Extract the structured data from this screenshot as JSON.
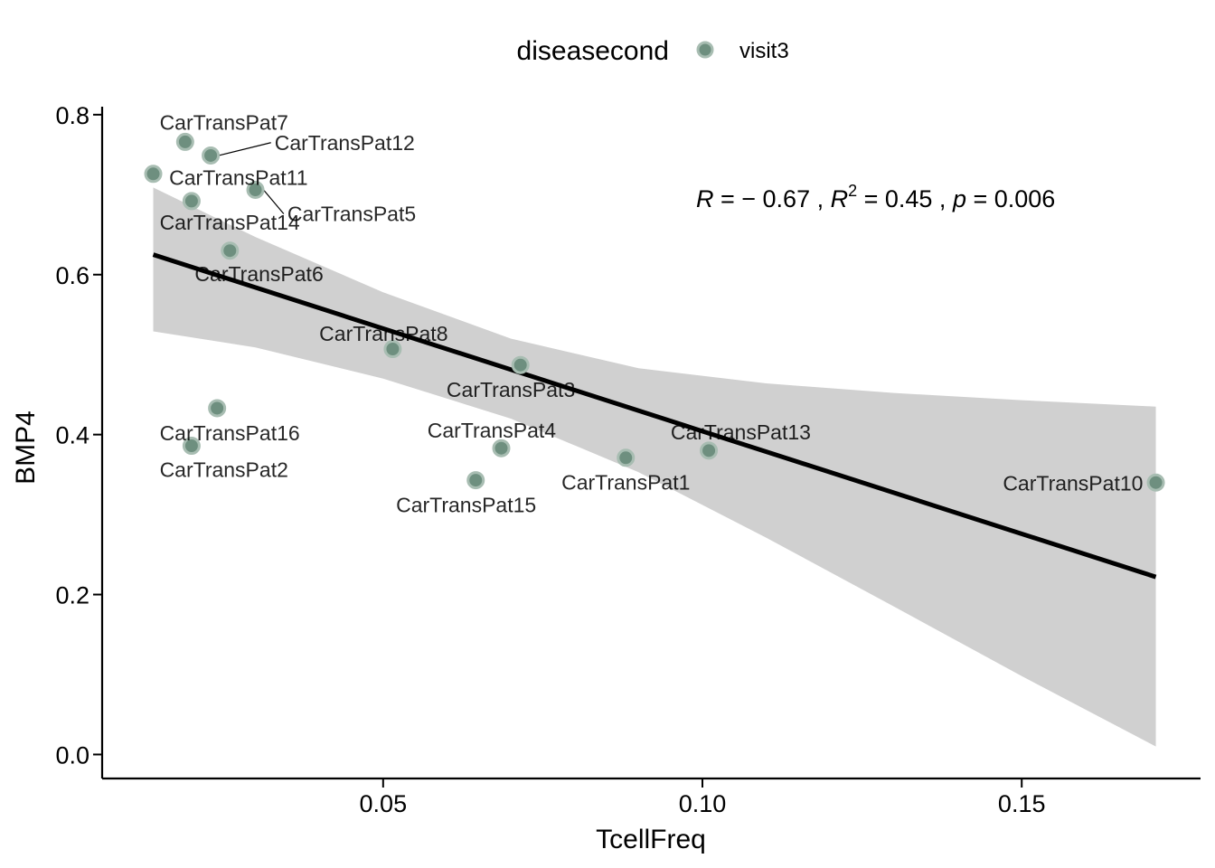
{
  "chart_data": {
    "type": "scatter",
    "xlabel": "TcellFreq",
    "ylabel": "BMP4",
    "xlim": [
      0.006,
      0.178
    ],
    "ylim": [
      -0.03,
      0.81
    ],
    "x_ticks": [
      0.05,
      0.1,
      0.15
    ],
    "x_tick_labels": [
      "0.05",
      "0.10",
      "0.15"
    ],
    "y_ticks": [
      0.0,
      0.2,
      0.4,
      0.6,
      0.8
    ],
    "y_tick_labels": [
      "0.0",
      "0.2",
      "0.4",
      "0.6",
      "0.8"
    ],
    "grid": false,
    "legend": {
      "placement": "top",
      "title": "diseasecond",
      "entries": [
        {
          "label": "visit3",
          "color": "#6e8f7f"
        }
      ]
    },
    "point_color": "#6e8f7f",
    "point_edge_color": "#a8bdb2",
    "band_color": "#d0d0d0",
    "line_color": "#000000",
    "series": [
      {
        "name": "visit3",
        "points": [
          {
            "label": "CarTransPat7",
            "x": 0.019,
            "y": 0.766,
            "lx": 0.015,
            "ly": 0.781,
            "anchor": "start",
            "leader": false
          },
          {
            "label": "CarTransPat12",
            "x": 0.023,
            "y": 0.749,
            "lx": 0.033,
            "ly": 0.756,
            "anchor": "start",
            "leader": true
          },
          {
            "label": "CarTransPat11",
            "x": 0.014,
            "y": 0.726,
            "lx": 0.0165,
            "ly": 0.712,
            "anchor": "start",
            "leader": false
          },
          {
            "label": "CarTransPat5",
            "x": 0.03,
            "y": 0.706,
            "lx": 0.035,
            "ly": 0.667,
            "anchor": "start",
            "leader": true
          },
          {
            "label": "CarTransPat14",
            "x": 0.02,
            "y": 0.692,
            "lx": 0.015,
            "ly": 0.656,
            "anchor": "start",
            "leader": false
          },
          {
            "label": "CarTransPat6",
            "x": 0.026,
            "y": 0.63,
            "lx": 0.0205,
            "ly": 0.592,
            "anchor": "start",
            "leader": false
          },
          {
            "label": "CarTransPat8",
            "x": 0.0515,
            "y": 0.507,
            "lx": 0.04,
            "ly": 0.517,
            "anchor": "start",
            "leader": false
          },
          {
            "label": "CarTransPat3",
            "x": 0.0715,
            "y": 0.487,
            "lx": 0.07,
            "ly": 0.447,
            "anchor": "middle",
            "leader": false
          },
          {
            "label": "CarTransPat16",
            "x": 0.024,
            "y": 0.433,
            "lx": 0.015,
            "ly": 0.393,
            "anchor": "start",
            "leader": false
          },
          {
            "label": "CarTransPat2",
            "x": 0.02,
            "y": 0.386,
            "lx": 0.015,
            "ly": 0.347,
            "anchor": "start",
            "leader": false
          },
          {
            "label": "CarTransPat4",
            "x": 0.0685,
            "y": 0.383,
            "lx": 0.067,
            "ly": 0.396,
            "anchor": "middle",
            "leader": false
          },
          {
            "label": "CarTransPat15",
            "x": 0.0645,
            "y": 0.343,
            "lx": 0.063,
            "ly": 0.303,
            "anchor": "middle",
            "leader": false
          },
          {
            "label": "CarTransPat1",
            "x": 0.088,
            "y": 0.371,
            "lx": 0.088,
            "ly": 0.331,
            "anchor": "middle",
            "leader": false
          },
          {
            "label": "CarTransPat13",
            "x": 0.101,
            "y": 0.38,
            "lx": 0.106,
            "ly": 0.394,
            "anchor": "middle",
            "leader": false
          },
          {
            "label": "CarTransPat10",
            "x": 0.171,
            "y": 0.34,
            "lx": 0.169,
            "ly": 0.33,
            "anchor": "end",
            "leader": false
          }
        ]
      }
    ],
    "regression": {
      "x_start": 0.014,
      "y_start": 0.625,
      "x_end": 0.171,
      "y_end": 0.222,
      "band_upper": [
        [
          0.014,
          0.709
        ],
        [
          0.03,
          0.647
        ],
        [
          0.05,
          0.578
        ],
        [
          0.07,
          0.52
        ],
        [
          0.09,
          0.483
        ],
        [
          0.11,
          0.464
        ],
        [
          0.13,
          0.452
        ],
        [
          0.15,
          0.443
        ],
        [
          0.171,
          0.435
        ]
      ],
      "band_lower": [
        [
          0.014,
          0.529
        ],
        [
          0.03,
          0.509
        ],
        [
          0.05,
          0.47
        ],
        [
          0.07,
          0.42
        ],
        [
          0.09,
          0.353
        ],
        [
          0.11,
          0.271
        ],
        [
          0.13,
          0.185
        ],
        [
          0.15,
          0.098
        ],
        [
          0.171,
          0.01
        ]
      ]
    },
    "annotation": {
      "x": 0.1,
      "y": 0.7,
      "r_label": "R",
      "r_value": " = − 0.67 , ",
      "r2_label": "R",
      "r2_sup": "2",
      "r2_value": " = 0.45 , ",
      "p_label": "p",
      "p_value": " = 0.006"
    }
  }
}
